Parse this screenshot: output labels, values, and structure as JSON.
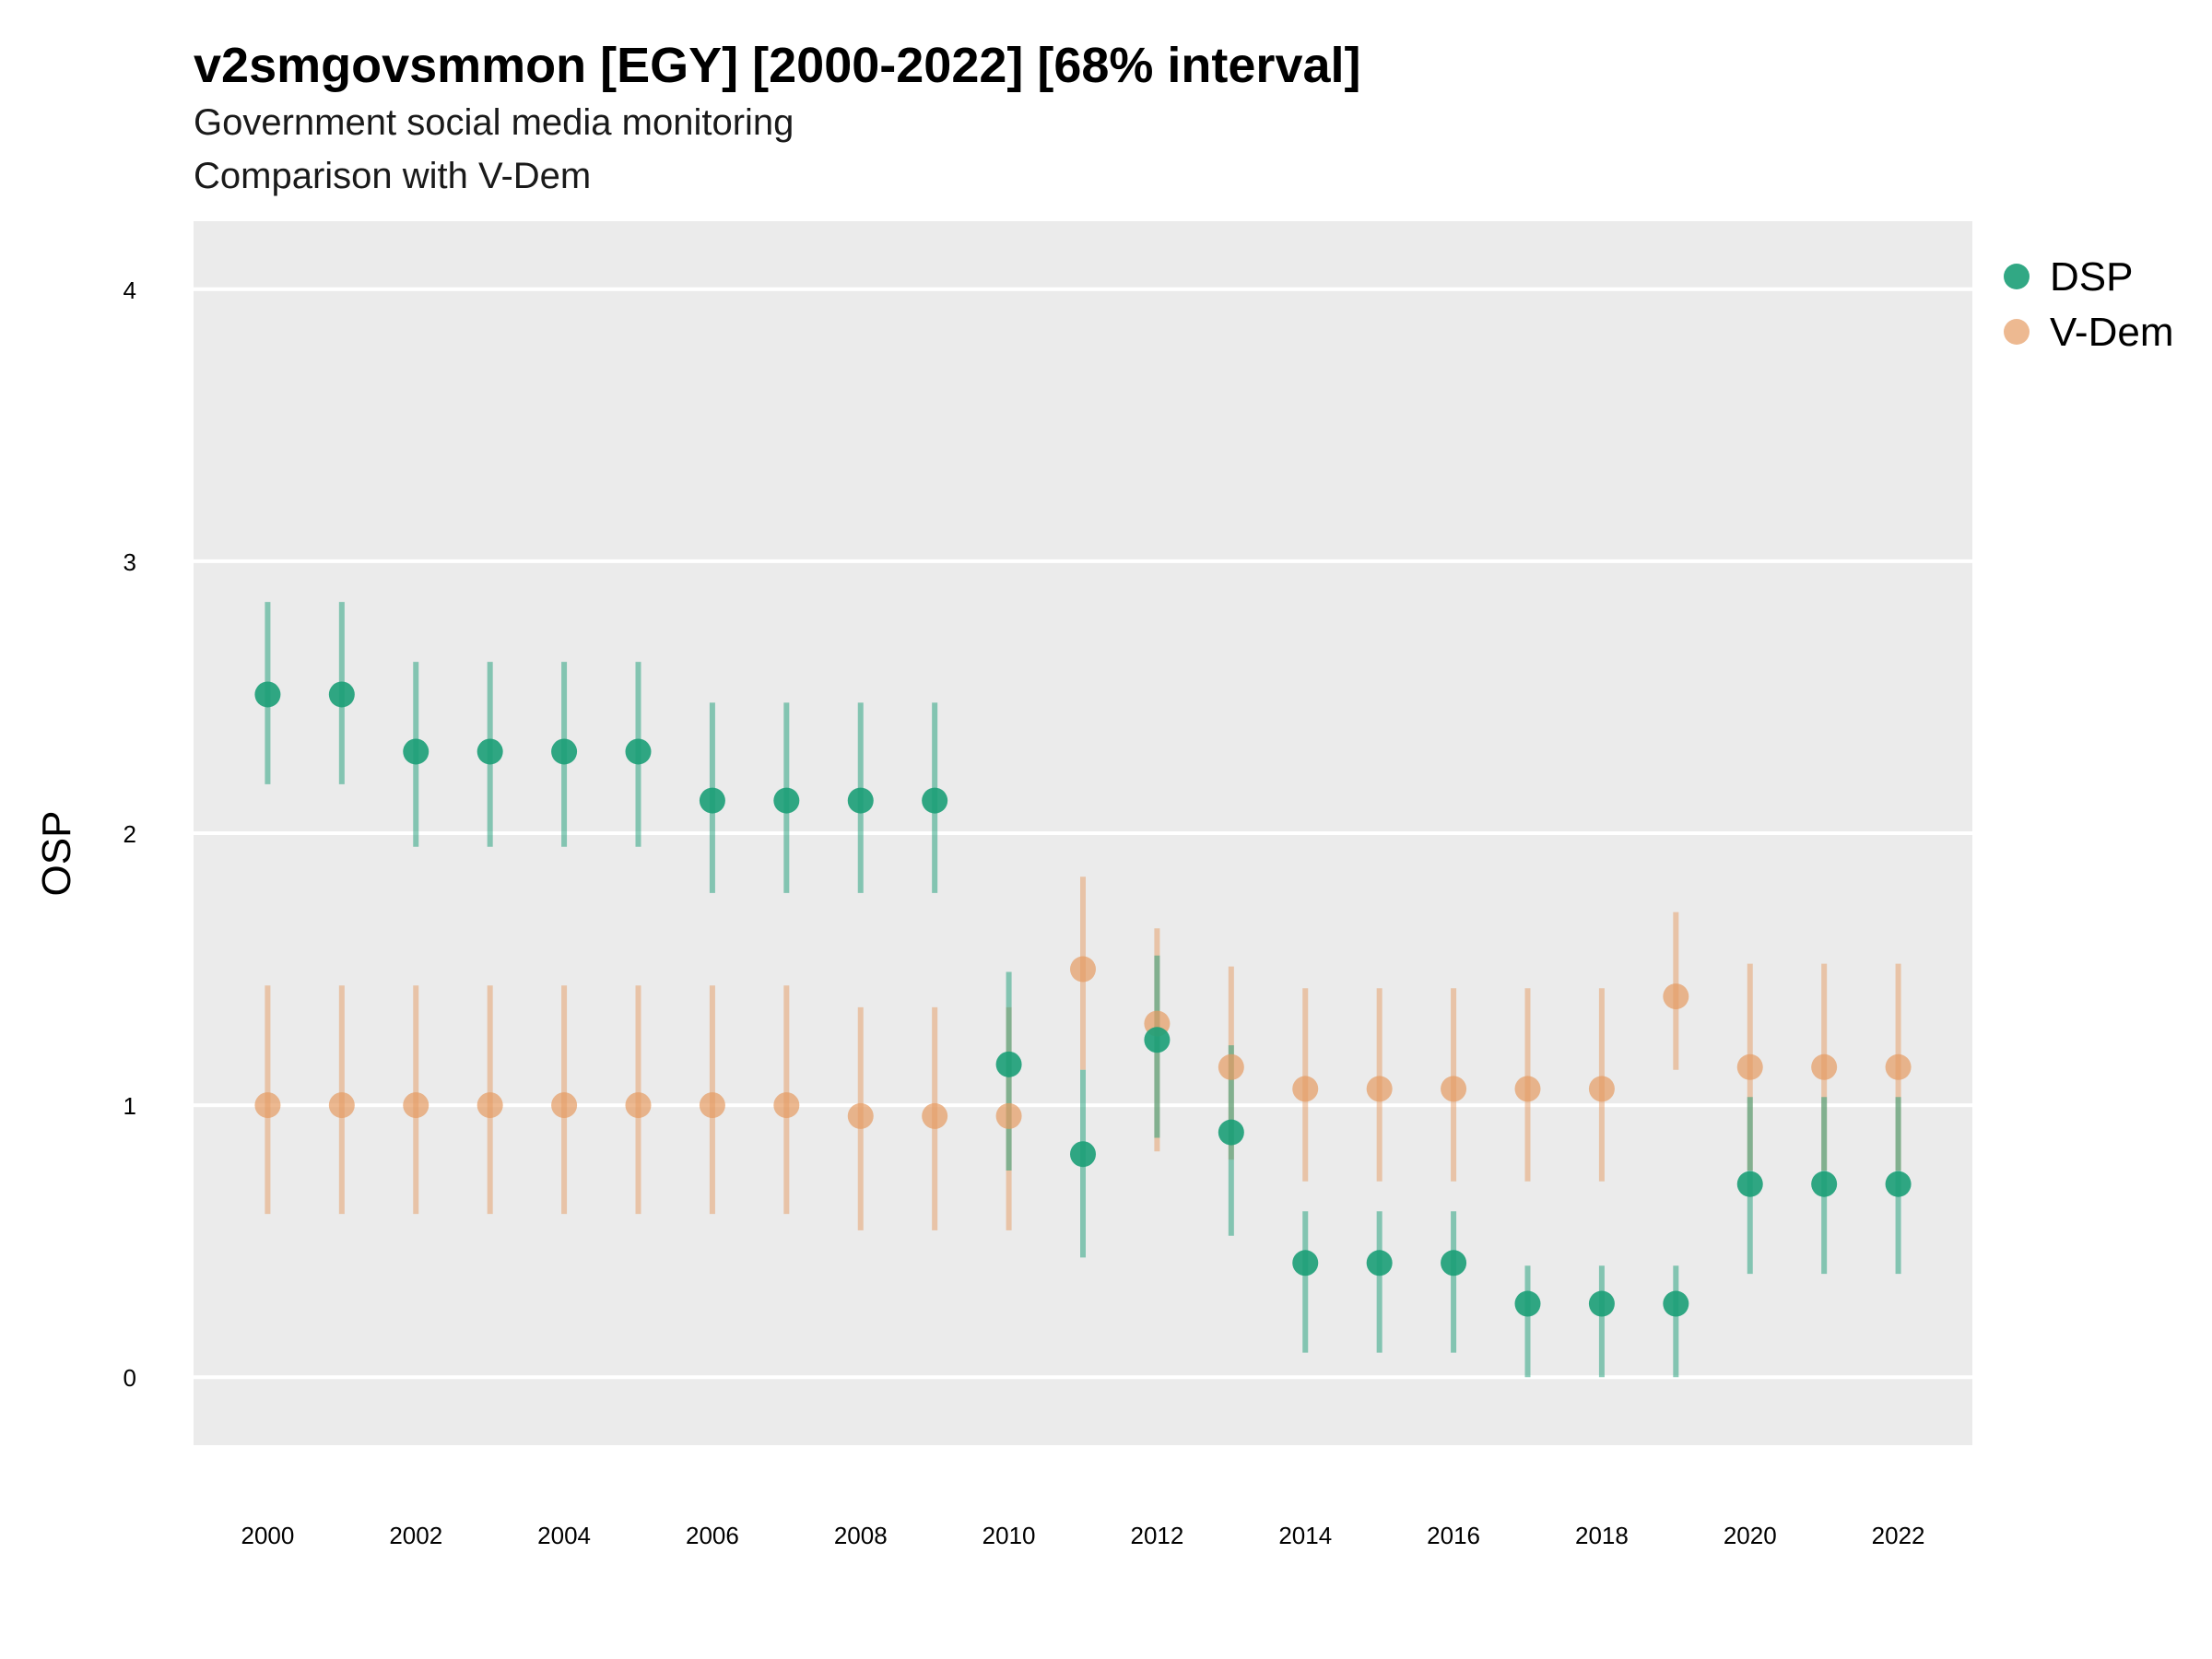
{
  "chart_data": {
    "type": "scatter",
    "title": "v2smgovsmmon [EGY] [2000-2022] [68% interval]",
    "subtitle": [
      "Government social media monitoring",
      "Comparison with V-Dem"
    ],
    "xlabel": "",
    "ylabel": "OSP",
    "xlim": [
      1999,
      2023
    ],
    "ylim": [
      -0.25,
      4.25
    ],
    "x_ticks": [
      "2000",
      "2002",
      "2004",
      "2006",
      "2008",
      "2010",
      "2012",
      "2014",
      "2016",
      "2018",
      "2020",
      "2022"
    ],
    "y_ticks": [
      "0",
      "1",
      "2",
      "3",
      "4"
    ],
    "grid": true,
    "legend_position": "right",
    "x": [
      2000,
      2001,
      2002,
      2003,
      2004,
      2005,
      2006,
      2007,
      2008,
      2009,
      2010,
      2011,
      2012,
      2013,
      2014,
      2015,
      2016,
      2017,
      2018,
      2019,
      2020,
      2021,
      2022
    ],
    "series": [
      {
        "name": "DSP",
        "color": "#1b9e77",
        "values": [
          2.51,
          2.51,
          2.3,
          2.3,
          2.3,
          2.3,
          2.12,
          2.12,
          2.12,
          2.12,
          1.15,
          0.82,
          1.24,
          0.9,
          0.42,
          0.42,
          0.42,
          0.27,
          0.27,
          0.27,
          0.71,
          0.71,
          0.71
        ],
        "lower": [
          2.18,
          2.18,
          1.95,
          1.95,
          1.95,
          1.95,
          1.78,
          1.78,
          1.78,
          1.78,
          0.76,
          0.44,
          0.88,
          0.52,
          0.09,
          0.09,
          0.09,
          0.0,
          0.0,
          0.0,
          0.38,
          0.38,
          0.38
        ],
        "upper": [
          2.85,
          2.85,
          2.63,
          2.63,
          2.63,
          2.63,
          2.48,
          2.48,
          2.48,
          2.48,
          1.49,
          1.13,
          1.55,
          1.22,
          0.61,
          0.61,
          0.61,
          0.41,
          0.41,
          0.41,
          1.03,
          1.03,
          1.03
        ]
      },
      {
        "name": "V-Dem",
        "color": "#e59b63",
        "values": [
          1.0,
          1.0,
          1.0,
          1.0,
          1.0,
          1.0,
          1.0,
          1.0,
          0.96,
          0.96,
          0.96,
          1.5,
          1.3,
          1.14,
          1.06,
          1.06,
          1.06,
          1.06,
          1.06,
          1.4,
          1.14,
          1.14,
          1.14
        ],
        "lower": [
          0.6,
          0.6,
          0.6,
          0.6,
          0.6,
          0.6,
          0.6,
          0.6,
          0.54,
          0.54,
          0.54,
          1.13,
          0.83,
          0.8,
          0.72,
          0.72,
          0.72,
          0.72,
          0.72,
          1.13,
          0.76,
          0.76,
          0.76
        ],
        "upper": [
          1.44,
          1.44,
          1.44,
          1.44,
          1.44,
          1.44,
          1.44,
          1.44,
          1.36,
          1.36,
          1.36,
          1.84,
          1.65,
          1.51,
          1.43,
          1.43,
          1.43,
          1.43,
          1.43,
          1.71,
          1.52,
          1.52,
          1.52
        ]
      }
    ]
  }
}
